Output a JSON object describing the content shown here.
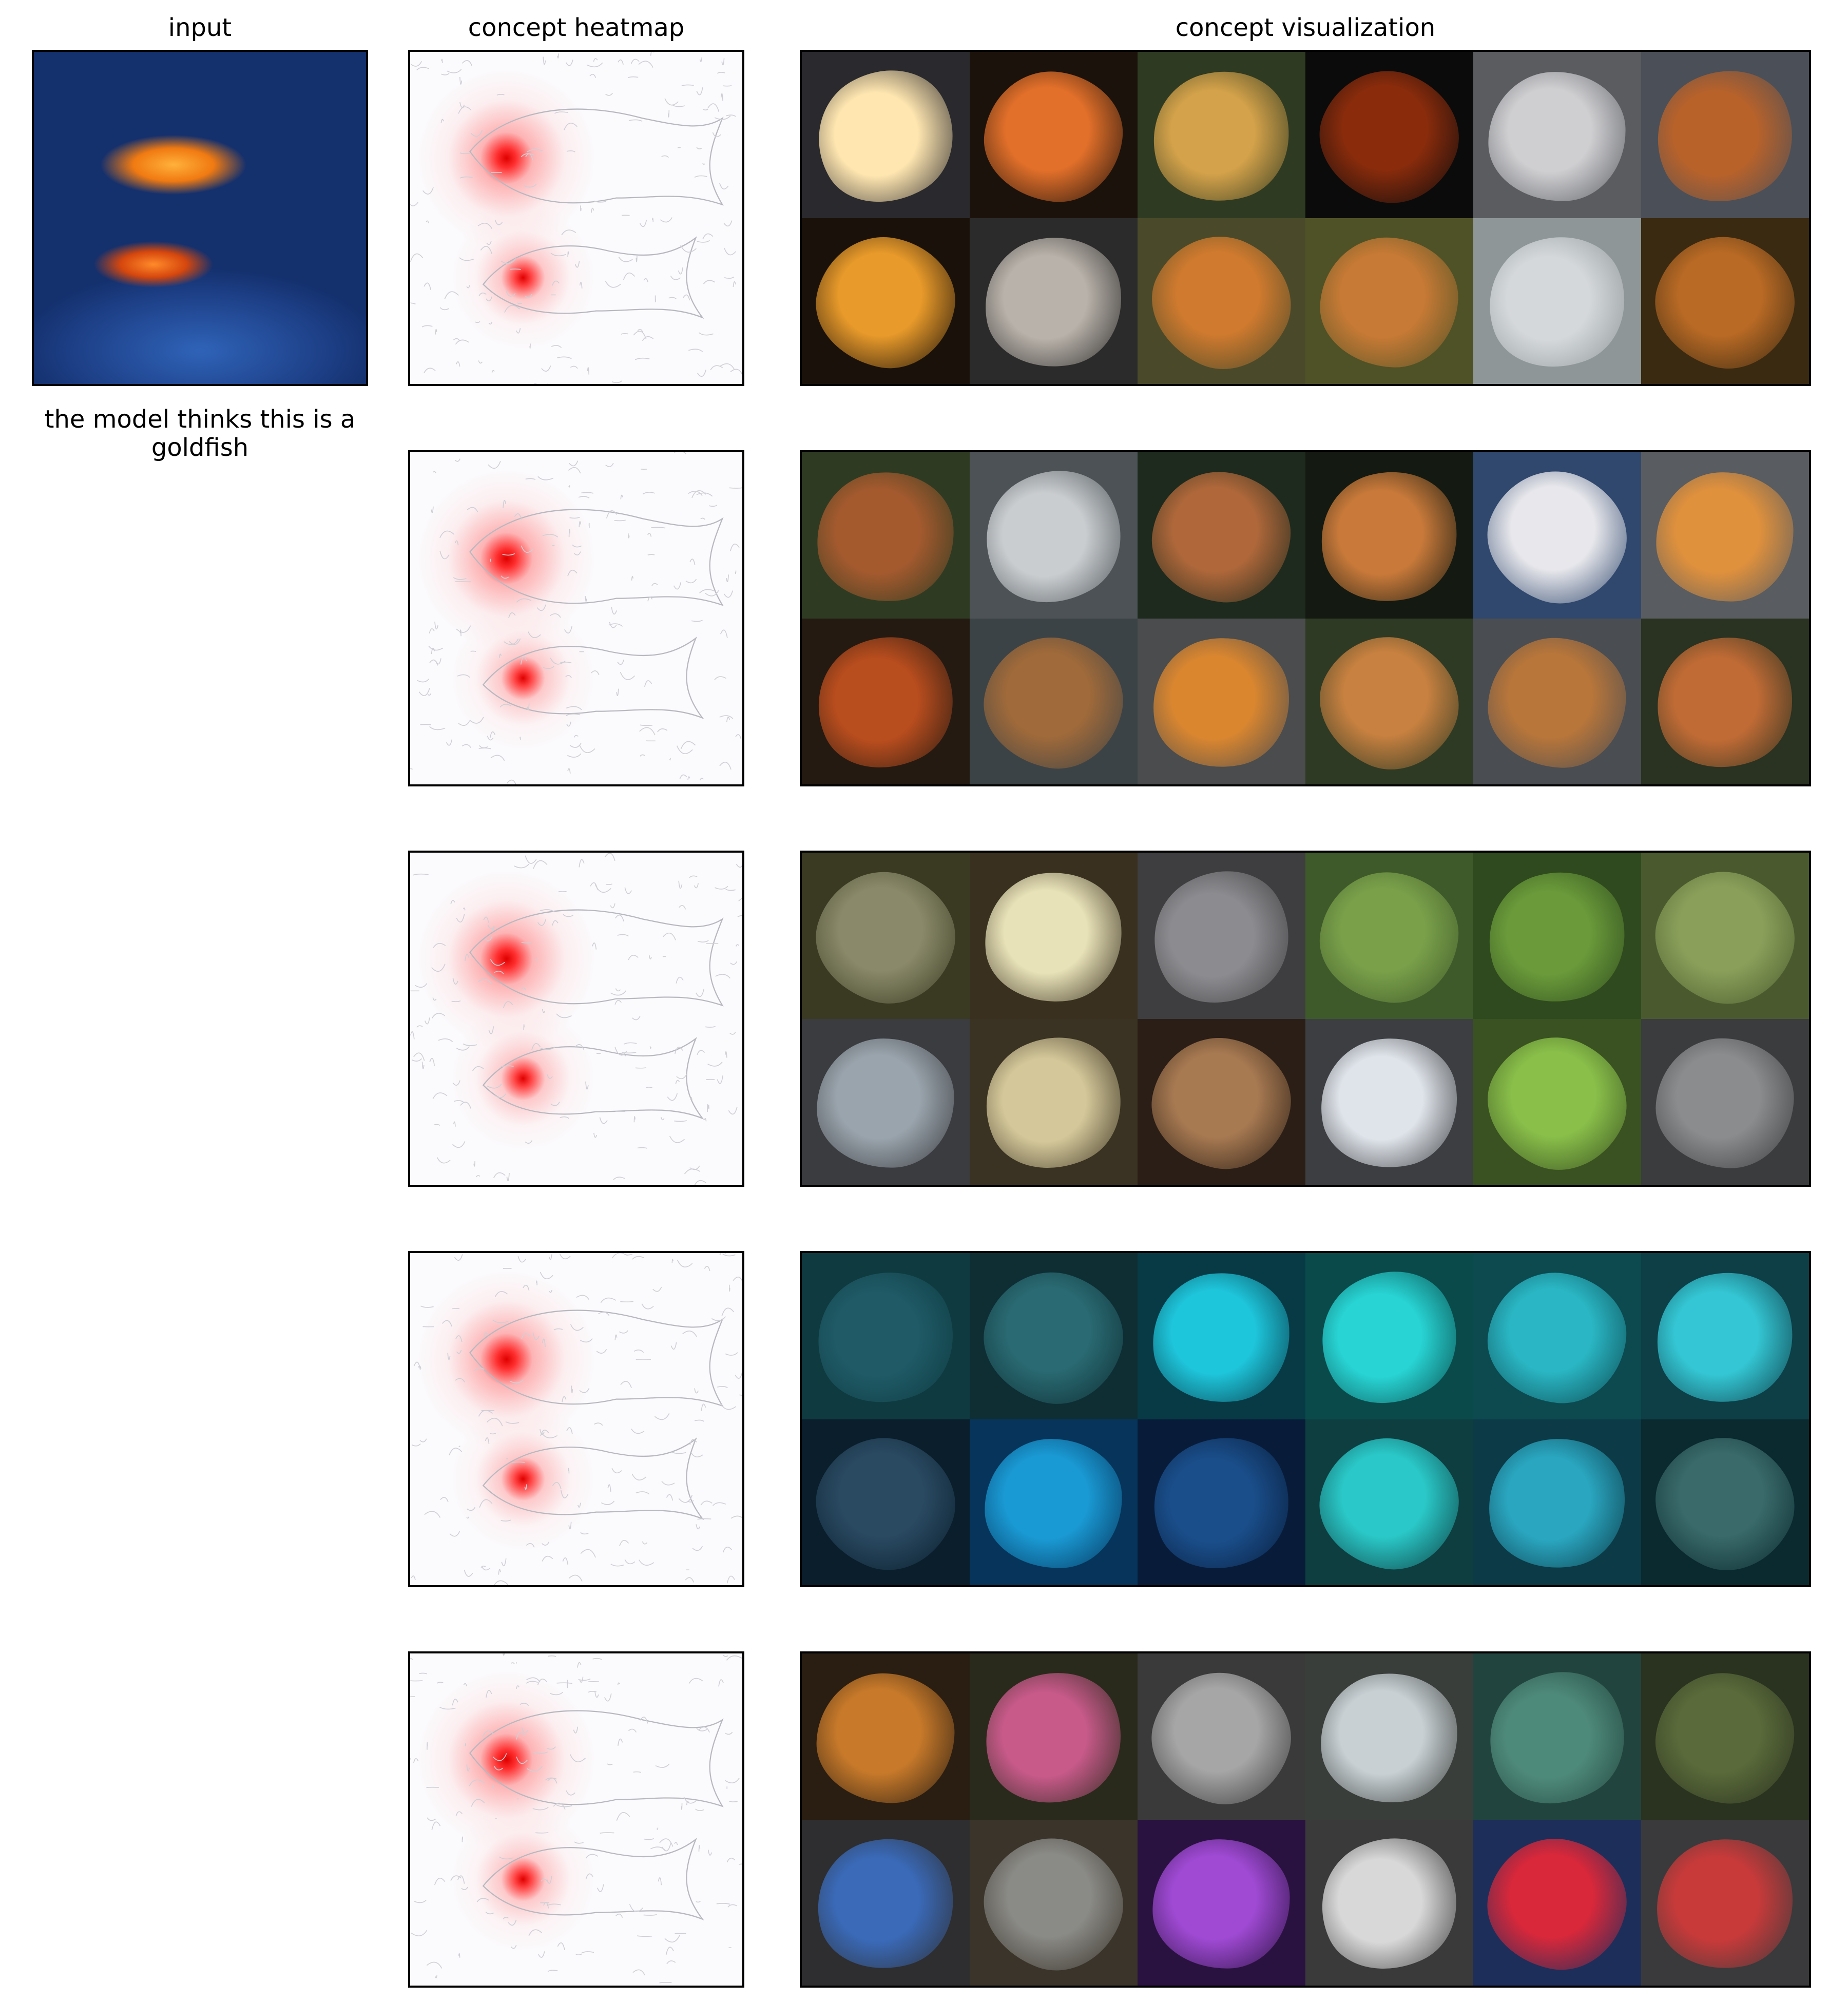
{
  "headers": {
    "input": "input",
    "heatmap": "concept heatmap",
    "visualization": "concept visualization"
  },
  "prediction_text": "the model thinks this is a goldfish",
  "concepts": [
    {
      "tiles": [
        {
          "bg": "#2a2a2e",
          "fg": "#ffe6b0"
        },
        {
          "bg": "#1c120c",
          "fg": "#e2702a"
        },
        {
          "bg": "#2f3a22",
          "fg": "#d4a24a"
        },
        {
          "bg": "#0b0b0b",
          "fg": "#8a2c0c"
        },
        {
          "bg": "#5a5c60",
          "fg": "#cfcfd2"
        },
        {
          "bg": "#4b4f58",
          "fg": "#b8622a"
        },
        {
          "bg": "#1a120a",
          "fg": "#e89a2a"
        },
        {
          "bg": "#2b2b2b",
          "fg": "#b9b2aa"
        },
        {
          "bg": "#4a4a2a",
          "fg": "#cf7a2e"
        },
        {
          "bg": "#4f5226",
          "fg": "#c77a35"
        },
        {
          "bg": "#8e9698",
          "fg": "#d4d8da"
        },
        {
          "bg": "#3a2a12",
          "fg": "#b96a25"
        }
      ]
    },
    {
      "tiles": [
        {
          "bg": "#2e3b22",
          "fg": "#a55a2e"
        },
        {
          "bg": "#4c5256",
          "fg": "#c9cdd0"
        },
        {
          "bg": "#1e2a1e",
          "fg": "#b0683a"
        },
        {
          "bg": "#141a12",
          "fg": "#c97a3a"
        },
        {
          "bg": "#30486e",
          "fg": "#e8e8ec"
        },
        {
          "bg": "#595c60",
          "fg": "#e0913c"
        },
        {
          "bg": "#241a12",
          "fg": "#b84d1e"
        },
        {
          "bg": "#3c4346",
          "fg": "#a06a3a"
        },
        {
          "bg": "#4a4c4e",
          "fg": "#d9862f"
        },
        {
          "bg": "#2e3a24",
          "fg": "#c88140"
        },
        {
          "bg": "#4a4d52",
          "fg": "#b8763a"
        },
        {
          "bg": "#2a3222",
          "fg": "#c06b35"
        }
      ]
    },
    {
      "tiles": [
        {
          "bg": "#3a3a22",
          "fg": "#8a8a6a"
        },
        {
          "bg": "#3a3020",
          "fg": "#e8e2b8"
        },
        {
          "bg": "#3e3e40",
          "fg": "#8c8c90"
        },
        {
          "bg": "#3e5a2a",
          "fg": "#7aa04a"
        },
        {
          "bg": "#2e4a1e",
          "fg": "#6a9a3a"
        },
        {
          "bg": "#4a5a2e",
          "fg": "#8aa05a"
        },
        {
          "bg": "#3a3c40",
          "fg": "#9aa4ac"
        },
        {
          "bg": "#3a3222",
          "fg": "#d4c89a"
        },
        {
          "bg": "#2a1e16",
          "fg": "#a87a52"
        },
        {
          "bg": "#3c3e42",
          "fg": "#dfe4ea"
        },
        {
          "bg": "#3a5222",
          "fg": "#8ac04a"
        },
        {
          "bg": "#3a3c3e",
          "fg": "#8a8c8e"
        }
      ]
    },
    {
      "tiles": [
        {
          "bg": "#0e3a40",
          "fg": "#1f5a66"
        },
        {
          "bg": "#0e2e34",
          "fg": "#2a6a72"
        },
        {
          "bg": "#083a46",
          "fg": "#1ec6dc"
        },
        {
          "bg": "#0a4a4a",
          "fg": "#28d4d4"
        },
        {
          "bg": "#0c4a50",
          "fg": "#2ab6c4"
        },
        {
          "bg": "#0e3e46",
          "fg": "#34c6d4"
        },
        {
          "bg": "#0a1e2c",
          "fg": "#2a4a62"
        },
        {
          "bg": "#06345a",
          "fg": "#1a9ad4"
        },
        {
          "bg": "#081c3a",
          "fg": "#1a4e8a"
        },
        {
          "bg": "#0e3e40",
          "fg": "#2ac8c8"
        },
        {
          "bg": "#0c3a46",
          "fg": "#2aa6c0"
        },
        {
          "bg": "#0a2a30",
          "fg": "#3a6a6a"
        }
      ]
    },
    {
      "tiles": [
        {
          "bg": "#2a1e12",
          "fg": "#c87a2a"
        },
        {
          "bg": "#2a2a1c",
          "fg": "#c85a8a"
        },
        {
          "bg": "#3a3a3a",
          "fg": "#a6a6a6"
        },
        {
          "bg": "#3a3e3a",
          "fg": "#c8d0d4"
        },
        {
          "bg": "#22443e",
          "fg": "#4e8a7a"
        },
        {
          "bg": "#2a3220",
          "fg": "#5a6a3a"
        },
        {
          "bg": "#2e2e30",
          "fg": "#3a6ab8"
        },
        {
          "bg": "#3a342a",
          "fg": "#8a8a86"
        },
        {
          "bg": "#2a1240",
          "fg": "#a04ad4"
        },
        {
          "bg": "#3a3a3a",
          "fg": "#d8d8d8"
        },
        {
          "bg": "#1e2e5a",
          "fg": "#d8283a"
        },
        {
          "bg": "#3a3a3c",
          "fg": "#c83a3a"
        }
      ]
    }
  ]
}
